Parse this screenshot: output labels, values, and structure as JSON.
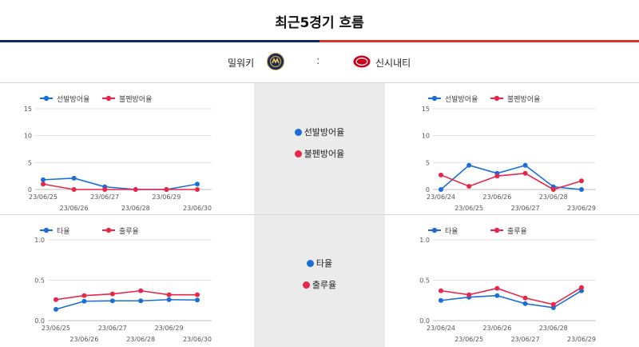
{
  "header": {
    "title": "최근5경기 흐름"
  },
  "teams": {
    "home": {
      "name": "밀워키",
      "logo": "milwaukee-brewers-logo"
    },
    "separator": ":",
    "away": {
      "name": "신시내티",
      "logo": "cincinnati-reds-logo"
    }
  },
  "colors": {
    "blue": "#1a6fd6",
    "red": "#e8264a",
    "home_bar": "#13286b",
    "away_bar": "#d8342c"
  },
  "center_legend": {
    "era": [
      {
        "label": "선발방어율",
        "color": "#1a6fd6"
      },
      {
        "label": "불펜방어율",
        "color": "#e8264a"
      }
    ],
    "rate": [
      {
        "label": "타율",
        "color": "#1a6fd6"
      },
      {
        "label": "출루율",
        "color": "#e8264a"
      }
    ]
  },
  "chart_data": [
    {
      "type": "line",
      "team": "밀워키",
      "categories": [
        "23/06/25",
        "23/06/26",
        "23/06/27",
        "23/06/28",
        "23/06/29",
        "23/06/30"
      ],
      "series": [
        {
          "name": "선발방어율",
          "color": "#1a6fd6",
          "values": [
            1.8,
            2.1,
            0.5,
            0,
            0,
            1.0
          ]
        },
        {
          "name": "불펜방어율",
          "color": "#e8264a",
          "values": [
            1.0,
            0,
            0,
            0,
            0,
            0
          ]
        }
      ],
      "yticks": [
        "15",
        "10",
        "5",
        "0"
      ],
      "ylim": [
        0,
        15
      ],
      "legend": "top-left",
      "grid": true
    },
    {
      "type": "line",
      "team": "신시내티",
      "categories": [
        "23/06/24",
        "23/06/25",
        "23/06/26",
        "23/06/27",
        "23/06/28",
        "23/06/29"
      ],
      "series": [
        {
          "name": "선발방어율",
          "color": "#1a6fd6",
          "values": [
            0,
            4.5,
            3.0,
            4.5,
            0.5,
            0
          ]
        },
        {
          "name": "불펜방어율",
          "color": "#e8264a",
          "values": [
            2.7,
            0.6,
            2.5,
            3.0,
            0,
            1.6
          ]
        }
      ],
      "yticks": [
        "15",
        "10",
        "5",
        "0"
      ],
      "ylim": [
        0,
        15
      ],
      "legend": "top-left",
      "grid": true
    },
    {
      "type": "line",
      "team": "밀워키",
      "categories": [
        "23/06/25",
        "23/06/26",
        "23/06/27",
        "23/06/28",
        "23/06/29",
        "23/06/30"
      ],
      "series": [
        {
          "name": "타율",
          "color": "#1a6fd6",
          "values": [
            0.14,
            0.24,
            0.245,
            0.245,
            0.26,
            0.255
          ]
        },
        {
          "name": "출루율",
          "color": "#e8264a",
          "values": [
            0.26,
            0.31,
            0.33,
            0.37,
            0.32,
            0.32
          ]
        }
      ],
      "yticks": [
        "1.0",
        "0.5",
        "0.0"
      ],
      "ylim": [
        0,
        1.0
      ],
      "legend": "top-left",
      "grid": true
    },
    {
      "type": "line",
      "team": "신시내티",
      "categories": [
        "23/06/24",
        "23/06/25",
        "23/06/26",
        "23/06/27",
        "23/06/28",
        "23/06/29"
      ],
      "series": [
        {
          "name": "타율",
          "color": "#1a6fd6",
          "values": [
            0.25,
            0.29,
            0.31,
            0.21,
            0.16,
            0.37
          ]
        },
        {
          "name": "출루율",
          "color": "#e8264a",
          "values": [
            0.37,
            0.32,
            0.4,
            0.28,
            0.2,
            0.41
          ]
        }
      ],
      "yticks": [
        "1.0",
        "0.5",
        "0.0"
      ],
      "ylim": [
        0,
        1.0
      ],
      "legend": "top-left",
      "grid": true
    }
  ]
}
